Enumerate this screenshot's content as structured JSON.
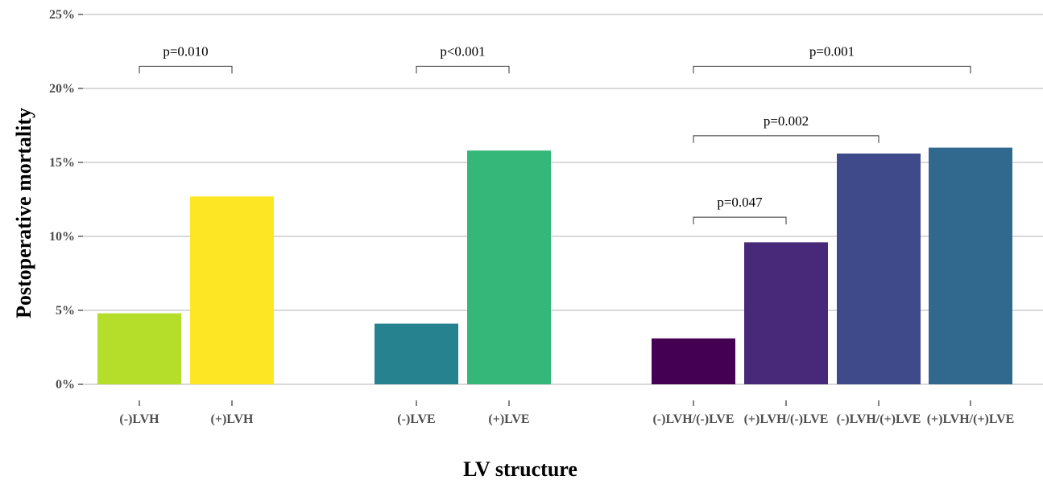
{
  "chart_data": {
    "type": "bar",
    "title": "",
    "xlabel": "LV structure",
    "ylabel": "Postoperative mortality",
    "ylim": [
      0,
      25
    ],
    "yticks": [
      0,
      5,
      10,
      15,
      20,
      25
    ],
    "ytick_suffix": "%",
    "grid": "horizontal",
    "legend": "none",
    "groups": [
      {
        "bars": [
          {
            "label": "(-)LVH",
            "value": 4.8,
            "color": "#B5DE2B"
          },
          {
            "label": "(+)LVH",
            "value": 12.7,
            "color": "#FDE725"
          }
        ]
      },
      {
        "bars": [
          {
            "label": "(-)LVE",
            "value": 4.1,
            "color": "#26828E"
          },
          {
            "label": "(+)LVE",
            "value": 15.8,
            "color": "#35B779"
          }
        ]
      },
      {
        "bars": [
          {
            "label": "(-)LVH/(-)LVE",
            "value": 3.1,
            "color": "#440154"
          },
          {
            "label": "(+)LVH/(-)LVE",
            "value": 9.6,
            "color": "#482878"
          },
          {
            "label": "(-)LVH/(+)LVE",
            "value": 15.6,
            "color": "#3E4A89"
          },
          {
            "label": "(+)LVH/(+)LVE",
            "value": 16.0,
            "color": "#31688E"
          }
        ]
      }
    ],
    "annotations": [
      {
        "label": "p=0.010",
        "from": "(-)LVH",
        "to": "(+)LVH",
        "level": 21.5
      },
      {
        "label": "p<0.001",
        "from": "(-)LVE",
        "to": "(+)LVE",
        "level": 21.5
      },
      {
        "label": "p=0.001",
        "from": "(-)LVH/(-)LVE",
        "to": "(+)LVH/(+)LVE",
        "level": 21.5
      },
      {
        "label": "p=0.002",
        "from": "(-)LVH/(-)LVE",
        "to": "(-)LVH/(+)LVE",
        "level": 16.8
      },
      {
        "label": "p=0.047",
        "from": "(-)LVH/(-)LVE",
        "to": "(+)LVH/(-)LVE",
        "level": 11.3
      }
    ]
  }
}
